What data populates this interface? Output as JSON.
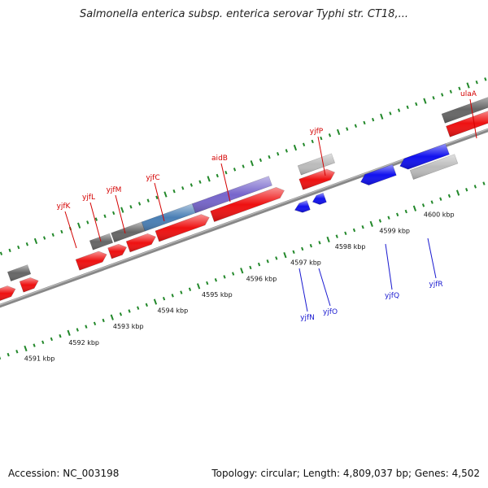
{
  "title": "Salmonella enterica subsp. enterica serovar Typhi str. CT18,...",
  "footer": {
    "accession": "Accession: NC_003198",
    "summary": "Topology: circular; Length: 4,809,037 bp; Genes: 4,502"
  },
  "colors": {
    "forward_cds": "#ee1111",
    "reverse_cds": "#1111ee",
    "gray_feature": "#666666",
    "light_feature": "#bbbbbb",
    "steelblue_feature": "#4a7fb5",
    "purple_feature": "#7766cc",
    "tick": "#22882a",
    "backbone": "#888888",
    "fwd_label": "#d40000",
    "rev_label": "#1a1ad0"
  },
  "kbp_labels": [
    "4591 kbp",
    "4592 kbp",
    "4593 kbp",
    "4594 kbp",
    "4595 kbp",
    "4596 kbp",
    "4597 kbp",
    "4598 kbp",
    "4599 kbp",
    "4600 kbp"
  ],
  "genes_forward": [
    "yjfK",
    "yjfL",
    "yjfM",
    "yjfC",
    "aidB",
    "yjfP",
    "ulaA"
  ],
  "genes_reverse": [
    "yjfN",
    "yjfO",
    "yjfQ",
    "yjfR"
  ]
}
